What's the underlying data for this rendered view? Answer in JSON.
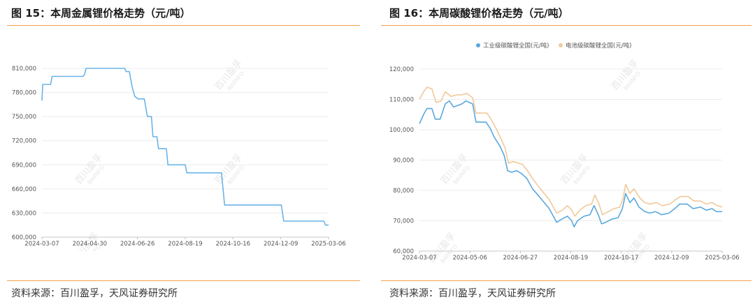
{
  "left": {
    "title": "图 15：本周金属锂价格走势（元/吨）",
    "source": "资料来源：百川盈孚，天风证券研究所",
    "accent": "#f2a04a",
    "line_color": "#6ab4e8"
  },
  "right": {
    "title": "图 16：本周碳酸锂价格走势（元/吨）",
    "source": "资料来源：百川盈孚，天风证券研究所",
    "accent": "#f2a04a"
  },
  "chart_data": [
    {
      "type": "line",
      "ylim": [
        600000,
        810000
      ],
      "yticks": [
        600000,
        630000,
        660000,
        690000,
        720000,
        750000,
        780000,
        810000
      ],
      "ytick_labels": [
        "600,000",
        "630,000",
        "660,000",
        "690,000",
        "720,000",
        "750,000",
        "780,000",
        "810,000"
      ],
      "xlim": [
        "2024-03-07",
        "2025-03-06"
      ],
      "xtick_labels": [
        "2024-03-07",
        "2024-04-30",
        "2024-06-26",
        "2024-08-19",
        "2024-10-16",
        "2024-12-09",
        "2025-03-06"
      ],
      "series": [
        {
          "color": "#6ab4e8",
          "points": [
            [
              "2024-03-07",
              770000
            ],
            [
              "2024-03-08",
              790000
            ],
            [
              "2024-03-18",
              790000
            ],
            [
              "2024-03-20",
              800000
            ],
            [
              "2024-04-28",
              800000
            ],
            [
              "2024-04-30",
              802000
            ],
            [
              "2024-05-02",
              810000
            ],
            [
              "2024-06-20",
              810000
            ],
            [
              "2024-06-22",
              806000
            ],
            [
              "2024-06-26",
              806000
            ],
            [
              "2024-06-28",
              795000
            ],
            [
              "2024-06-30",
              785000
            ],
            [
              "2024-07-03",
              775000
            ],
            [
              "2024-07-07",
              772000
            ],
            [
              "2024-07-15",
              772000
            ],
            [
              "2024-07-19",
              750000
            ],
            [
              "2024-07-24",
              750000
            ],
            [
              "2024-07-26",
              725000
            ],
            [
              "2024-07-31",
              725000
            ],
            [
              "2024-08-02",
              710000
            ],
            [
              "2024-08-12",
              710000
            ],
            [
              "2024-08-14",
              690000
            ],
            [
              "2024-09-05",
              690000
            ],
            [
              "2024-09-07",
              680000
            ],
            [
              "2024-10-21",
              680000
            ],
            [
              "2024-10-25",
              640000
            ],
            [
              "2025-01-05",
              640000
            ],
            [
              "2025-01-08",
              620000
            ],
            [
              "2025-02-28",
              620000
            ],
            [
              "2025-03-02",
              615000
            ],
            [
              "2025-03-06",
              615000
            ]
          ]
        }
      ]
    },
    {
      "type": "line",
      "ylim": [
        60000,
        120000
      ],
      "yticks": [
        60000,
        70000,
        80000,
        90000,
        100000,
        110000,
        120000
      ],
      "ytick_labels": [
        "60,000",
        "70,000",
        "80,000",
        "90,000",
        "100,000",
        "110,000",
        "120,000"
      ],
      "xlim": [
        "2024-03-07",
        "2025-03-06"
      ],
      "xtick_labels": [
        "2024-03-07",
        "2024-05-06",
        "2024-06-27",
        "2024-08-19",
        "2024-10-17",
        "2024-12-09",
        "2025-03-06"
      ],
      "legend_position": "top-center",
      "series": [
        {
          "name": "工业级碳酸锂全国(元/吨)",
          "color": "#5aa8dc",
          "points": [
            [
              "2024-03-07",
              102000
            ],
            [
              "2024-03-12",
              105000
            ],
            [
              "2024-03-16",
              107000
            ],
            [
              "2024-03-22",
              107000
            ],
            [
              "2024-03-26",
              103500
            ],
            [
              "2024-04-01",
              103500
            ],
            [
              "2024-04-07",
              108500
            ],
            [
              "2024-04-12",
              109500
            ],
            [
              "2024-04-17",
              107500
            ],
            [
              "2024-04-27",
              108500
            ],
            [
              "2024-05-02",
              109500
            ],
            [
              "2024-05-10",
              108500
            ],
            [
              "2024-05-14",
              102500
            ],
            [
              "2024-05-26",
              102500
            ],
            [
              "2024-05-31",
              100500
            ],
            [
              "2024-06-05",
              97500
            ],
            [
              "2024-06-12",
              94500
            ],
            [
              "2024-06-17",
              91500
            ],
            [
              "2024-06-21",
              86500
            ],
            [
              "2024-06-26",
              86000
            ],
            [
              "2024-07-02",
              86500
            ],
            [
              "2024-07-08",
              85500
            ],
            [
              "2024-07-14",
              84000
            ],
            [
              "2024-07-21",
              80500
            ],
            [
              "2024-07-29",
              78000
            ],
            [
              "2024-08-04",
              76000
            ],
            [
              "2024-08-10",
              74000
            ],
            [
              "2024-08-15",
              71500
            ],
            [
              "2024-08-19",
              69500
            ],
            [
              "2024-08-25",
              70500
            ],
            [
              "2024-09-01",
              71500
            ],
            [
              "2024-09-06",
              70000
            ],
            [
              "2024-09-09",
              68000
            ],
            [
              "2024-09-13",
              70000
            ],
            [
              "2024-09-21",
              71500
            ],
            [
              "2024-09-28",
              72000
            ],
            [
              "2024-10-03",
              75000
            ],
            [
              "2024-10-08",
              72000
            ],
            [
              "2024-10-12",
              69000
            ],
            [
              "2024-10-17",
              69500
            ],
            [
              "2024-10-24",
              70500
            ],
            [
              "2024-11-01",
              71000
            ],
            [
              "2024-11-06",
              74000
            ],
            [
              "2024-11-10",
              79000
            ],
            [
              "2024-11-15",
              76000
            ],
            [
              "2024-11-20",
              77500
            ],
            [
              "2024-11-26",
              74500
            ],
            [
              "2024-12-03",
              73000
            ],
            [
              "2024-12-09",
              72500
            ],
            [
              "2024-12-16",
              73000
            ],
            [
              "2024-12-23",
              72000
            ],
            [
              "2025-01-01",
              72500
            ],
            [
              "2025-01-08",
              74000
            ],
            [
              "2025-01-14",
              75500
            ],
            [
              "2025-01-23",
              75500
            ],
            [
              "2025-01-30",
              74000
            ],
            [
              "2025-02-08",
              74500
            ],
            [
              "2025-02-15",
              73500
            ],
            [
              "2025-02-22",
              74000
            ],
            [
              "2025-02-27",
              73000
            ],
            [
              "2025-03-06",
              73000
            ]
          ]
        },
        {
          "name": "电池级碳酸锂全国(元/吨)",
          "color": "#f0c99a",
          "points": [
            [
              "2024-03-07",
              110000
            ],
            [
              "2024-03-12",
              112500
            ],
            [
              "2024-03-16",
              114000
            ],
            [
              "2024-03-22",
              113500
            ],
            [
              "2024-03-27",
              109000
            ],
            [
              "2024-04-02",
              109500
            ],
            [
              "2024-04-07",
              112500
            ],
            [
              "2024-04-14",
              111000
            ],
            [
              "2024-04-21",
              111500
            ],
            [
              "2024-04-27",
              111500
            ],
            [
              "2024-05-03",
              112000
            ],
            [
              "2024-05-10",
              110500
            ],
            [
              "2024-05-14",
              105500
            ],
            [
              "2024-05-27",
              105500
            ],
            [
              "2024-06-01",
              103500
            ],
            [
              "2024-06-07",
              100500
            ],
            [
              "2024-06-13",
              97000
            ],
            [
              "2024-06-18",
              94000
            ],
            [
              "2024-06-22",
              89000
            ],
            [
              "2024-06-28",
              89500
            ],
            [
              "2024-07-04",
              89000
            ],
            [
              "2024-07-09",
              88500
            ],
            [
              "2024-07-15",
              86500
            ],
            [
              "2024-07-22",
              83500
            ],
            [
              "2024-07-29",
              81000
            ],
            [
              "2024-08-04",
              79000
            ],
            [
              "2024-08-10",
              77000
            ],
            [
              "2024-08-15",
              74500
            ],
            [
              "2024-08-19",
              72500
            ],
            [
              "2024-08-26",
              73500
            ],
            [
              "2024-09-01",
              75000
            ],
            [
              "2024-09-06",
              73500
            ],
            [
              "2024-09-10",
              71500
            ],
            [
              "2024-09-16",
              73500
            ],
            [
              "2024-09-23",
              75000
            ],
            [
              "2024-09-30",
              75500
            ],
            [
              "2024-10-04",
              78500
            ],
            [
              "2024-10-09",
              75500
            ],
            [
              "2024-10-13",
              72000
            ],
            [
              "2024-10-20",
              73000
            ],
            [
              "2024-10-27",
              74000
            ],
            [
              "2024-11-03",
              74500
            ],
            [
              "2024-11-07",
              77500
            ],
            [
              "2024-11-10",
              82000
            ],
            [
              "2024-11-15",
              79000
            ],
            [
              "2024-11-20",
              80500
            ],
            [
              "2024-11-27",
              77500
            ],
            [
              "2024-12-03",
              76000
            ],
            [
              "2024-12-09",
              75500
            ],
            [
              "2024-12-17",
              76000
            ],
            [
              "2024-12-24",
              75000
            ],
            [
              "2025-01-02",
              75500
            ],
            [
              "2025-01-09",
              77000
            ],
            [
              "2025-01-15",
              78000
            ],
            [
              "2025-01-24",
              78000
            ],
            [
              "2025-01-31",
              76500
            ],
            [
              "2025-02-08",
              76500
            ],
            [
              "2025-02-15",
              75500
            ],
            [
              "2025-02-22",
              76000
            ],
            [
              "2025-02-28",
              75000
            ],
            [
              "2025-03-06",
              74500
            ]
          ]
        }
      ]
    }
  ],
  "watermark": {
    "cn": "百川盈孚",
    "en": "BAIINFO"
  }
}
